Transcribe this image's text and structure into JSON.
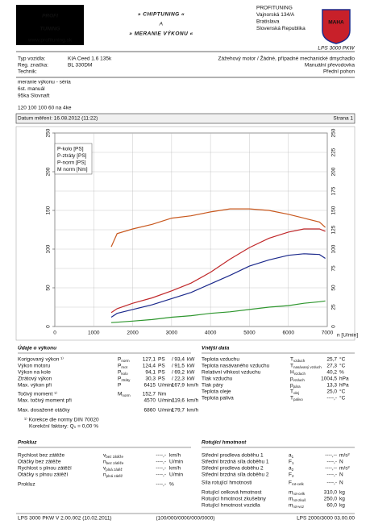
{
  "header": {
    "logo_top": "PROFI",
    "logo_bottom": "TUNING",
    "logo_url": "www.profituning.sk",
    "center": [
      "» CHIPTUNING «",
      "A",
      "» MERANIE VÝKONU «"
    ],
    "company": [
      "PROFITUNING",
      "Vajnorská 134/A",
      "Bratislava",
      "Slovenská Republika"
    ],
    "brand": "MAHA",
    "model": "LPS 3000 PKW"
  },
  "vehicle": {
    "left": [
      [
        "Typ vozidla:",
        "KIA Ceed 1.6 135k"
      ],
      [
        "Reg. značka:",
        "BL 330DM"
      ],
      [
        "Technik:"
      ]
    ],
    "right": [
      "Zážehový motor / Žádné, případné mechanické dmychadlo",
      "Manuální převodovka",
      "Přední pohon"
    ]
  },
  "notes": [
    "meranie výkonu - séria",
    "6st. manuál",
    "95ka Slovnaft",
    "120 100 100 60 na 4ke"
  ],
  "date": {
    "label": "Datum měření: 16.08.2012 (11:22)",
    "page": "Strana 1"
  },
  "chart_data": {
    "type": "line",
    "x": [
      1450,
      1600,
      2000,
      2500,
      3000,
      3500,
      4000,
      4500,
      5000,
      5500,
      6000,
      6400,
      6800,
      6950
    ],
    "series": [
      {
        "name": "P-kolo [PS]",
        "color": "#1c2a8c",
        "values": [
          12,
          17,
          22,
          28,
          36,
          44,
          55,
          66,
          78,
          86,
          92,
          94,
          93,
          88
        ]
      },
      {
        "name": "P-ztráty [PS]",
        "color": "#2e962e",
        "values": [
          5,
          5.5,
          7,
          9,
          12,
          14,
          17,
          19,
          22,
          25,
          27,
          30,
          32,
          33
        ]
      },
      {
        "name": "P-norm [PS]",
        "color": "#c0282a",
        "values": [
          18,
          23,
          30,
          37,
          46,
          56,
          70,
          87,
          102,
          114,
          122,
          126,
          126,
          123
        ]
      },
      {
        "name": "M norm [Nm]",
        "color": "#c8581e",
        "axis": "y2",
        "values": [
          103,
          120,
          126,
          132,
          140,
          143,
          148,
          152,
          152,
          150,
          145,
          140,
          135,
          128
        ]
      }
    ],
    "xlim": [
      0,
      7000
    ],
    "xticks": [
      0,
      1000,
      2000,
      3000,
      4000,
      5000,
      6000,
      7000
    ],
    "ylim": [
      0,
      250
    ],
    "yticks": [
      0,
      50,
      100,
      150,
      200,
      250
    ],
    "y2lim": [
      0,
      250
    ],
    "y2ticks": [
      0,
      25,
      50,
      75,
      100,
      125,
      150,
      175,
      200,
      225,
      250
    ],
    "xlabel": "n [U/min]",
    "grid": true,
    "legend": "upper left",
    "y2color": "#c0282a"
  },
  "sections": {
    "performance": {
      "title": "Údaje o výkonu",
      "separator": "/",
      "rows": [
        {
          "label": "Korigovaný výkon ¹⁾",
          "sym": "P",
          "sub": "norm",
          "v1": "127,1",
          "u1": "PS",
          "v2": "93,4",
          "u2": "kW",
          "color": "#c0282a"
        },
        {
          "label": "Výkon motoru",
          "sym": "P",
          "sub": "mot",
          "v1": "124,4",
          "u1": "PS",
          "v2": "91,5",
          "u2": "kW",
          "color": "#c0282a"
        },
        {
          "label": "Výkon na kole",
          "sym": "P",
          "sub": "kolo",
          "v1": "94,1",
          "u1": "PS",
          "v2": "69,2",
          "u2": "kW",
          "color": "#1c2a8c"
        },
        {
          "label": "Ztrátový výkon",
          "sym": "P",
          "sub": "ztráty",
          "v1": "30,3",
          "u1": "PS",
          "v2": "22,3",
          "u2": "kW",
          "color": "#2e962e"
        },
        {
          "label": "Max. výkon při",
          "sym": "P",
          "v1": "6415",
          "u1": "U/min",
          "v2": "167,9",
          "u2": "km/h",
          "color": "#111"
        },
        {
          "label": "Točivý moment ¹⁾",
          "sym": "M",
          "sub": "norm",
          "v1": "152,7",
          "u1": "Nm",
          "color": "#c0282a"
        },
        {
          "label": "Max. točivý moment při",
          "v1": "4570",
          "u1": "U/min",
          "v2": "119,6",
          "u2": "km/h",
          "color": "#111"
        },
        {
          "label": "Max. dosažené otáčky",
          "v1": "6860",
          "u1": "U/min",
          "v2": "179,7",
          "u2": "km/h",
          "color": "#111"
        }
      ],
      "notes": [
        "¹⁾ Korekce dle normy DIN 70020",
        "Korekční faktory: Q₀ = 0,00 %"
      ]
    },
    "external": {
      "title": "Vnější data",
      "rows": [
        {
          "label": "Teplota vzduchu",
          "sym": "T",
          "sub": "vzduch",
          "v": "25,7",
          "u": "°C"
        },
        {
          "label": "Teplota nasávaného vzduchu",
          "sym": "T",
          "sub": "nasávaný vzduch",
          "v": "27,3",
          "u": "°C"
        },
        {
          "label": "Relativní vlhkost vzduchu",
          "sym": "H",
          "sub": "vzduch",
          "v": "40,2",
          "u": "%"
        },
        {
          "label": "Tlak vzduchu",
          "sym": "p",
          "sub": "vzduch",
          "v": "1004,5",
          "u": "hPa"
        },
        {
          "label": "Tlak páry",
          "sym": "p",
          "sub": "pára",
          "v": "13,3",
          "u": "hPa"
        },
        {
          "label": "Teplota oleje",
          "sym": "T",
          "sub": "olej",
          "v": "25,0",
          "u": "°C"
        },
        {
          "label": "Teplota paliva",
          "sym": "T",
          "sub": "palivo",
          "v": "----,-",
          "u": "°C"
        }
      ]
    },
    "slip": {
      "title": "Prokluz",
      "rows": [
        {
          "label": "Rychlost bez zátěže",
          "sym": "v",
          "sub": "bez zátěže",
          "v": "----,-",
          "u": "km/h"
        },
        {
          "label": "Otáčky bez zátěže",
          "sym": "n",
          "sub": "bez zátěže",
          "v": "----,-",
          "u": "U/min"
        },
        {
          "label": "Rychlost s plnou zátěží",
          "sym": "v",
          "sub": "plná zátěž",
          "v": "----,-",
          "u": "km/h"
        },
        {
          "label": "Otáčky s plnou zátěží",
          "sym": "n",
          "sub": "plná zátěž",
          "v": "----,-",
          "u": "U/min"
        },
        {
          "label": "Prokluz",
          "v": "----,-",
          "u": "%"
        }
      ]
    },
    "rotating": {
      "title": "Rotující hmotnost",
      "rows": [
        {
          "label": "Střední prodleva doběhu 1",
          "sym": "a",
          "sub": "1",
          "v": "----,--",
          "u": "m/s²"
        },
        {
          "label": "Střední brzdná síla doběhu 1",
          "sym": "F",
          "sub": "1",
          "v": "----,-",
          "u": "N"
        },
        {
          "label": "Střední prodleva doběhu 2",
          "sym": "a",
          "sub": "2",
          "v": "----,--",
          "u": "m/s²"
        },
        {
          "label": "Střední brzdná síla doběhu 2",
          "sym": "F",
          "sub": "2",
          "v": "----,-",
          "u": "N"
        },
        {
          "label": "Síla rotující hmotnosti",
          "sym": "F",
          "sub": "rot-celk",
          "v": "----,-",
          "u": "N"
        },
        {
          "label": "Rotující celková hmotnost",
          "sym": "m",
          "sub": "rot-celk",
          "v": "310,0",
          "u": "kg"
        },
        {
          "label": "Rotující hmotnost zkušebny",
          "sym": "m",
          "sub": "rot-zkuš",
          "v": "250,0",
          "u": "kg"
        },
        {
          "label": "Rotující hmotnost vozidla",
          "sym": "m",
          "sub": "rot-voz",
          "v": "60,0",
          "u": "kg"
        }
      ]
    }
  },
  "footer": [
    "LPS 3000 PKW V 2.00.002 (10.02.2011)",
    "(100/000/0000/000/0000)",
    "LPS 2000/3000 03.00.00"
  ]
}
